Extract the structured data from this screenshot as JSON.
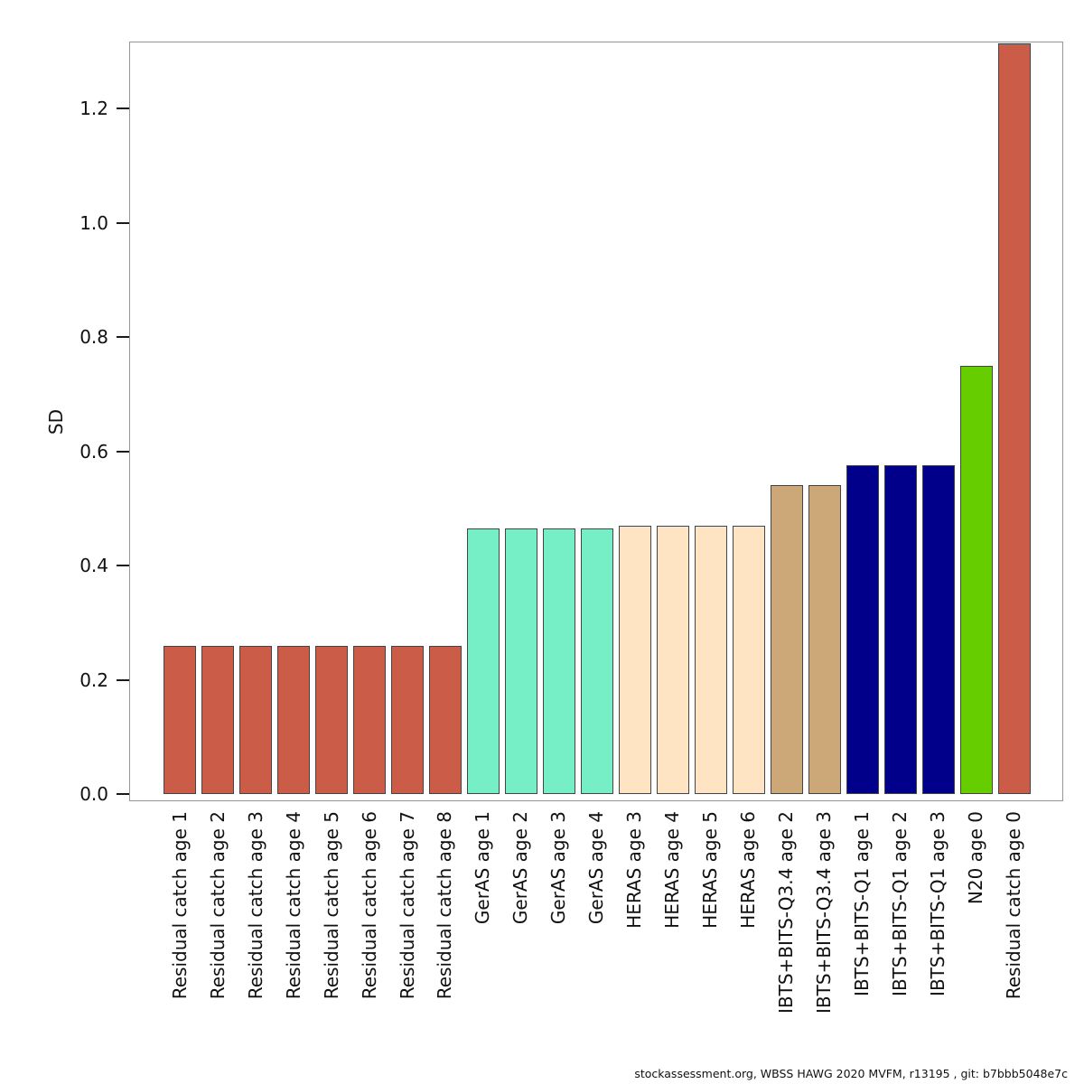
{
  "figure": {
    "y_axis": {
      "label": "SD",
      "ticks": [
        "0.0",
        "0.2",
        "0.4",
        "0.6",
        "0.8",
        "1.0",
        "1.2"
      ]
    },
    "footer": "stockassessment.org, WBSS HAWG 2020 MVFM, r13195 , git: b7bbb5048e7c"
  },
  "chart_data": {
    "type": "bar",
    "title": "",
    "xlabel": "",
    "ylabel": "SD",
    "ylim": [
      0,
      1.32
    ],
    "grid": false,
    "legend": "none",
    "categories": [
      "Residual catch age 1",
      "Residual catch age 2",
      "Residual catch age 3",
      "Residual catch age 4",
      "Residual catch age 5",
      "Residual catch age 6",
      "Residual catch age 7",
      "Residual catch age 8",
      "GerAS age 1",
      "GerAS age 2",
      "GerAS age 3",
      "GerAS age 4",
      "HERAS age 3",
      "HERAS age 4",
      "HERAS age 5",
      "HERAS age 6",
      "IBTS+BITS-Q3.4 age 2",
      "IBTS+BITS-Q3.4 age 3",
      "IBTS+BITS-Q1 age 1",
      "IBTS+BITS-Q1 age 2",
      "IBTS+BITS-Q1 age 3",
      "N20 age 0",
      "Residual catch age 0"
    ],
    "values": [
      0.26,
      0.26,
      0.26,
      0.26,
      0.26,
      0.26,
      0.26,
      0.26,
      0.465,
      0.465,
      0.465,
      0.465,
      0.47,
      0.47,
      0.47,
      0.47,
      0.54,
      0.54,
      0.575,
      0.575,
      0.575,
      0.75,
      1.32
    ],
    "bar_colors": [
      "#CB5C48",
      "#CB5C48",
      "#CB5C48",
      "#CB5C48",
      "#CB5C48",
      "#CB5C48",
      "#CB5C48",
      "#CB5C48",
      "#76EEC6",
      "#76EEC6",
      "#76EEC6",
      "#76EEC6",
      "#FFE4C4",
      "#FFE4C4",
      "#FFE4C4",
      "#FFE4C4",
      "#CCA878",
      "#CCA878",
      "#00008B",
      "#00008B",
      "#00008B",
      "#66CD00",
      "#CB5C48"
    ],
    "group_colors": {
      "Residual catch": "#CB5C48",
      "GerAS": "#76EEC6",
      "HERAS": "#FFE4C4",
      "IBTS+BITS-Q3.4": "#CCA878",
      "IBTS+BITS-Q1": "#00008B",
      "N20": "#66CD00"
    }
  }
}
